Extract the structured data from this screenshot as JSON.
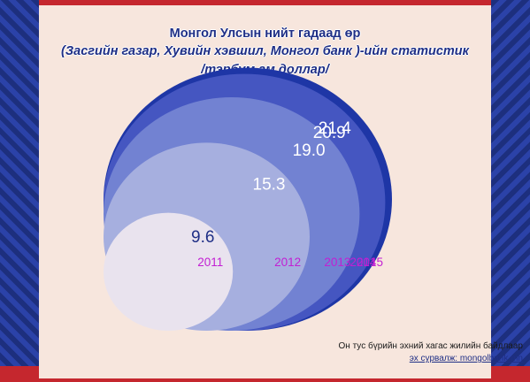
{
  "title_line1": "Монгол Улсын нийт гадаад өр",
  "title_line2": "(Засгийн газар, Хувийн хэвшил, Монгол банк )-ийн статистик",
  "title_line3": "/тэрбум ам.доллар/",
  "footnote_line1": "Он тус бүрийн эхний хагас жилийн байдлаар",
  "footnote_line2": "эх сурвалж: mongolbank.mn",
  "chart_data": {
    "type": "bubble",
    "title": "Монгол Улсын нийт гадаад өр",
    "unit": "тэрбум ам.доллар",
    "categories": [
      "2011",
      "2012",
      "2013",
      "2014",
      "2015"
    ],
    "values": [
      9.6,
      15.3,
      19.0,
      20.9,
      21.4
    ],
    "value_labels": [
      "9.6",
      "15.3",
      "19.0",
      "20.9",
      "21.4"
    ],
    "colors": [
      "#e9e3ee",
      "#a6afdf",
      "#7282d2",
      "#4556c1",
      "#1e36a6"
    ],
    "year_label_color": "#c21fd3"
  }
}
